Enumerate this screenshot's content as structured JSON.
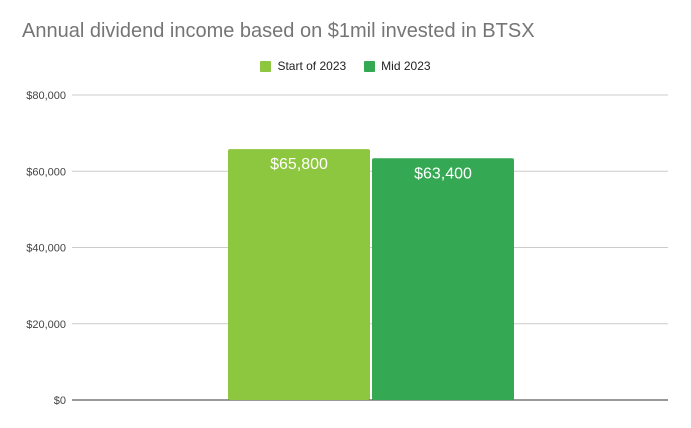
{
  "chart_data": {
    "type": "bar",
    "title": "Annual dividend income based on $1mil invested in BTSX",
    "xlabel": "",
    "ylabel": "",
    "ylim": [
      0,
      80000
    ],
    "yticks": [
      0,
      20000,
      40000,
      60000,
      80000
    ],
    "ytick_labels": [
      "$0",
      "$20,000",
      "$40,000",
      "$60,000",
      "$80,000"
    ],
    "grid": true,
    "legend_position": "top-center",
    "series": [
      {
        "name": "Start of 2023",
        "value": 65800,
        "label": "$65,800",
        "color": "#8DC63F"
      },
      {
        "name": "Mid 2023",
        "value": 63400,
        "label": "$63,400",
        "color": "#34A853"
      }
    ]
  }
}
